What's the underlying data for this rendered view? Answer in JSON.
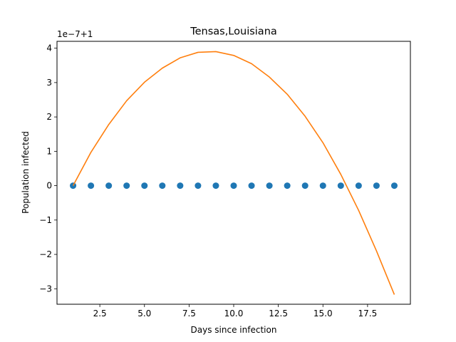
{
  "chart_data": {
    "type": "scatter",
    "title": "Tensas,Louisiana",
    "xlabel": "Days since infection",
    "ylabel": "Population infected",
    "offset_label": "1e−7+1",
    "xlim": [
      0.1,
      19.9
    ],
    "ylim": [
      -3.45,
      4.2
    ],
    "x_ticks": [
      2.5,
      5.0,
      7.5,
      10.0,
      12.5,
      15.0,
      17.5
    ],
    "x_tick_labels": [
      "2.5",
      "5.0",
      "7.5",
      "10.0",
      "12.5",
      "15.0",
      "17.5"
    ],
    "y_ticks": [
      -3,
      -2,
      -1,
      0,
      1,
      2,
      3,
      4
    ],
    "y_tick_labels": [
      "−3",
      "−2",
      "−1",
      "0",
      "1",
      "2",
      "3",
      "4"
    ],
    "grid": false,
    "series": [
      {
        "kind": "scatter",
        "color": "#1f77b4",
        "x": [
          1,
          2,
          3,
          4,
          5,
          6,
          7,
          8,
          9,
          10,
          11,
          12,
          13,
          14,
          15,
          16,
          17,
          18,
          19
        ],
        "y": [
          0,
          0,
          0,
          0,
          0,
          0,
          0,
          0,
          0,
          0,
          0,
          0,
          0,
          0,
          0,
          0,
          0,
          0,
          0
        ]
      },
      {
        "kind": "line",
        "color": "#ff7f0e",
        "x": [
          1,
          2,
          3,
          4,
          5,
          6,
          7,
          8,
          9,
          10,
          11,
          12,
          13,
          14,
          15,
          16,
          17,
          18,
          19
        ],
        "y": [
          0.0,
          0.97,
          1.78,
          2.47,
          3.01,
          3.42,
          3.72,
          3.88,
          3.9,
          3.79,
          3.55,
          3.16,
          2.66,
          2.02,
          1.25,
          0.33,
          -0.72,
          -1.9,
          -3.17
        ]
      }
    ]
  }
}
